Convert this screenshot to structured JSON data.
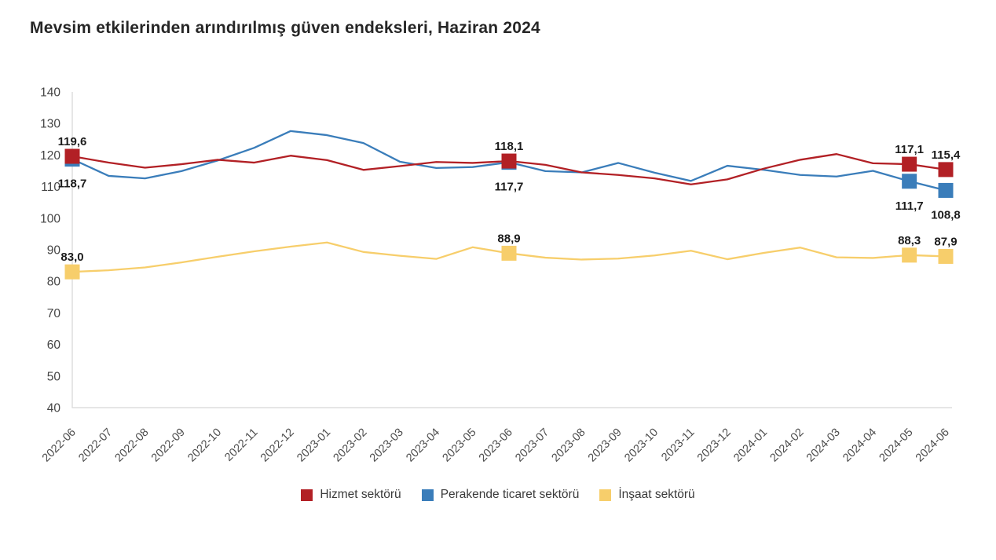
{
  "title": "Mevsim etkilerinden arındırılmış güven endeksleri, Haziran 2024",
  "chart_data": {
    "type": "line",
    "x": [
      "2022-06",
      "2022-07",
      "2022-08",
      "2022-09",
      "2022-10",
      "2022-11",
      "2022-12",
      "2023-01",
      "2023-02",
      "2023-03",
      "2023-04",
      "2023-05",
      "2023-06",
      "2023-07",
      "2023-08",
      "2023-09",
      "2023-10",
      "2023-11",
      "2023-12",
      "2024-01",
      "2024-02",
      "2024-03",
      "2024-04",
      "2024-05",
      "2024-06"
    ],
    "ylim": [
      40,
      140
    ],
    "ytick_step": 10,
    "grid": false,
    "legend_position": "bottom",
    "decimal_separator": ",",
    "axis_color": "#d8d8d8",
    "tick_label_color": "#454545",
    "point_label_color": "#1c1c1c",
    "series": [
      {
        "name": "Hizmet sektörü",
        "color": "#b22025",
        "values": [
          119.6,
          117.6,
          116.0,
          117.1,
          118.5,
          117.6,
          119.8,
          118.4,
          115.3,
          116.5,
          117.8,
          117.5,
          118.1,
          116.9,
          114.5,
          113.7,
          112.6,
          110.7,
          112.3,
          115.7,
          118.5,
          120.3,
          117.4,
          117.1,
          115.4
        ],
        "labeled_points": [
          {
            "index": 0,
            "label": "119,6",
            "side": "above"
          },
          {
            "index": 12,
            "label": "118,1",
            "side": "above"
          },
          {
            "index": 23,
            "label": "117,1",
            "side": "above"
          },
          {
            "index": 24,
            "label": "115,4",
            "side": "above"
          }
        ]
      },
      {
        "name": "Perakende ticaret sektörü",
        "color": "#3a7dba",
        "values": [
          118.7,
          113.4,
          112.6,
          114.9,
          118.3,
          122.3,
          127.6,
          126.3,
          123.8,
          117.9,
          115.9,
          116.2,
          117.7,
          114.9,
          114.5,
          117.5,
          114.4,
          111.8,
          116.6,
          115.3,
          113.7,
          113.2,
          115.0,
          111.7,
          108.8
        ],
        "labeled_points": [
          {
            "index": 0,
            "label": "118,7",
            "side": "below"
          },
          {
            "index": 12,
            "label": "117,7",
            "side": "below"
          },
          {
            "index": 23,
            "label": "111,7",
            "side": "below"
          },
          {
            "index": 24,
            "label": "108,8",
            "side": "below"
          }
        ]
      },
      {
        "name": "İnşaat sektörü",
        "color": "#f7ce6b",
        "values": [
          83.0,
          83.5,
          84.4,
          86.0,
          87.8,
          89.5,
          91.0,
          92.3,
          89.3,
          88.1,
          87.1,
          90.8,
          88.9,
          87.5,
          86.9,
          87.2,
          88.2,
          89.7,
          87.0,
          89.0,
          90.7,
          87.6,
          87.4,
          88.3,
          87.9
        ],
        "labeled_points": [
          {
            "index": 0,
            "label": "83,0",
            "side": "above"
          },
          {
            "index": 12,
            "label": "88,9",
            "side": "above"
          },
          {
            "index": 23,
            "label": "88,3",
            "side": "above"
          },
          {
            "index": 24,
            "label": "87,9",
            "side": "above"
          }
        ]
      }
    ]
  }
}
